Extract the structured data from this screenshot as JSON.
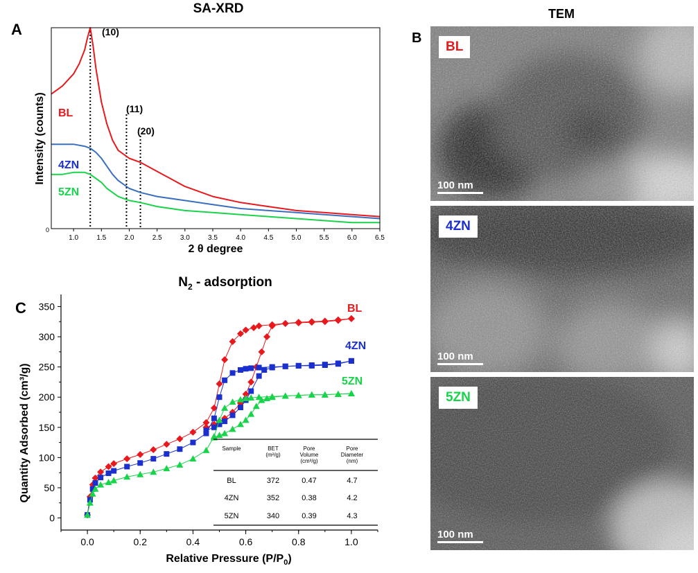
{
  "panel_a": {
    "letter": "A",
    "title": "SA-XRD",
    "xlabel": "2 θ degree",
    "ylabel": "Intensity (counts)",
    "y_tick": "0",
    "x_ticks": [
      "1.0",
      "1.5",
      "2.0",
      "2.5",
      "3.0",
      "3.5",
      "4.0",
      "4.5",
      "5.0",
      "5.5",
      "6.0",
      "6.5"
    ],
    "peaks": [
      "(10)",
      "(11)",
      "(20)"
    ],
    "series_labels": [
      "BL",
      "4ZN",
      "5ZN"
    ]
  },
  "panel_b": {
    "letter": "B",
    "title": "TEM",
    "images": [
      {
        "label": "BL",
        "scale": "100 nm",
        "color": "#e8191d"
      },
      {
        "label": "4ZN",
        "scale": "100 nm",
        "color": "#1b2fcc"
      },
      {
        "label": "5ZN",
        "scale": "100 nm",
        "color": "#19d34a"
      }
    ]
  },
  "panel_c": {
    "letter": "C",
    "title_main": "N",
    "title_sub": "2",
    "title_rest": " - adsorption",
    "xlabel_main": "Relative Pressure (P/P",
    "xlabel_sub": "0",
    "xlabel_end": ")",
    "ylabel": "Quantity Adsorbed (cm³/g)",
    "table": {
      "headers": [
        "Sample",
        "BET (m²/g)",
        "Pore Volume (cm³/g)",
        "Pore Diameter (nm)"
      ],
      "rows": [
        [
          "BL",
          "372",
          "0.47",
          "4.7"
        ],
        [
          "4ZN",
          "352",
          "0.38",
          "4.2"
        ],
        [
          "5ZN",
          "340",
          "0.39",
          "4.3"
        ]
      ]
    }
  },
  "chart_data": [
    {
      "type": "line",
      "title": "SA-XRD",
      "xlabel": "2 θ degree",
      "ylabel": "Intensity (counts)",
      "xlim": [
        0.6,
        6.5
      ],
      "ylim": [
        0,
        100
      ],
      "annotations": [
        {
          "text": "(10)",
          "x": 1.3
        },
        {
          "text": "(11)",
          "x": 1.95
        },
        {
          "text": "(20)",
          "x": 2.2
        }
      ],
      "series": [
        {
          "name": "BL",
          "color": "#e8191d",
          "x": [
            0.6,
            0.8,
            1.0,
            1.1,
            1.2,
            1.25,
            1.3,
            1.35,
            1.4,
            1.5,
            1.6,
            1.7,
            1.8,
            2.0,
            2.2,
            2.4,
            2.6,
            2.8,
            3.0,
            3.5,
            4.0,
            4.5,
            5.0,
            5.5,
            6.0,
            6.5
          ],
          "y": [
            67,
            71,
            77,
            82,
            89,
            95,
            100,
            91,
            80,
            63,
            52,
            44,
            39,
            35,
            33,
            30,
            27,
            24,
            21,
            16,
            13,
            11,
            9,
            8,
            7,
            6
          ]
        },
        {
          "name": "4ZN",
          "color": "#3a6fbf",
          "x": [
            0.6,
            0.8,
            1.0,
            1.2,
            1.3,
            1.4,
            1.5,
            1.6,
            1.7,
            1.8,
            2.0,
            2.2,
            2.5,
            3.0,
            3.5,
            4.0,
            4.5,
            5.0,
            5.5,
            6.0,
            6.5
          ],
          "y": [
            42,
            42,
            42,
            41,
            40,
            38,
            35,
            31,
            27,
            24,
            20,
            18,
            16,
            14,
            12,
            10,
            9,
            8,
            7,
            6,
            5
          ]
        },
        {
          "name": "5ZN",
          "color": "#19d34a",
          "x": [
            0.6,
            0.8,
            1.0,
            1.2,
            1.3,
            1.4,
            1.5,
            1.6,
            1.7,
            1.8,
            2.0,
            2.2,
            2.5,
            3.0,
            3.5,
            4.0,
            4.5,
            5.0,
            5.5,
            6.0,
            6.5
          ],
          "y": [
            27,
            27,
            28,
            28,
            27,
            25,
            23,
            20,
            18,
            16,
            14,
            13,
            11,
            9,
            8,
            7,
            6,
            5,
            4,
            3,
            3
          ]
        }
      ]
    },
    {
      "type": "line",
      "title": "N2 - adsorption",
      "xlabel": "Relative Pressure (P/P0)",
      "ylabel": "Quantity Adsorbed (cm³/g)",
      "xlim": [
        -0.1,
        1.1
      ],
      "ylim": [
        -20,
        370
      ],
      "x_ticks": [
        0.0,
        0.2,
        0.4,
        0.6,
        0.8,
        1.0
      ],
      "y_ticks": [
        0,
        50,
        100,
        150,
        200,
        250,
        300,
        350
      ],
      "series": [
        {
          "name": "BL",
          "color": "#e8191d",
          "marker": "diamond",
          "adsorption": {
            "x": [
              0.0,
              0.01,
              0.02,
              0.03,
              0.05,
              0.08,
              0.1,
              0.15,
              0.2,
              0.25,
              0.3,
              0.35,
              0.4,
              0.45,
              0.48,
              0.5,
              0.52,
              0.55,
              0.58,
              0.6,
              0.63,
              0.65,
              0.7,
              0.75,
              0.8,
              0.85,
              0.9,
              0.95,
              1.0
            ],
            "y": [
              5,
              35,
              55,
              66,
              76,
              85,
              90,
              98,
              105,
              113,
              122,
              131,
              142,
              158,
              182,
              222,
              262,
              292,
              305,
              311,
              315,
              318,
              320,
              322,
              323,
              324,
              325,
              327,
              330
            ]
          },
          "desorption": {
            "x": [
              1.0,
              0.95,
              0.9,
              0.85,
              0.8,
              0.75,
              0.7,
              0.68,
              0.66,
              0.64,
              0.62,
              0.6,
              0.58,
              0.55,
              0.52,
              0.5,
              0.48,
              0.45
            ],
            "y": [
              330,
              328,
              326,
              325,
              324,
              322,
              318,
              300,
              275,
              250,
              225,
              205,
              190,
              175,
              165,
              160,
              155,
              150
            ]
          }
        },
        {
          "name": "4ZN",
          "color": "#1b2fcc",
          "marker": "square",
          "adsorption": {
            "x": [
              0.0,
              0.01,
              0.02,
              0.03,
              0.05,
              0.08,
              0.1,
              0.15,
              0.2,
              0.25,
              0.3,
              0.35,
              0.4,
              0.45,
              0.48,
              0.5,
              0.52,
              0.55,
              0.58,
              0.6,
              0.62,
              0.65,
              0.7,
              0.75,
              0.8,
              0.85,
              0.9,
              0.95,
              1.0
            ],
            "y": [
              5,
              30,
              48,
              58,
              67,
              74,
              78,
              85,
              91,
              98,
              106,
              114,
              125,
              140,
              165,
              200,
              228,
              240,
              245,
              247,
              248,
              249,
              250,
              251,
              252,
              252,
              253,
              255,
              260
            ]
          },
          "desorption": {
            "x": [
              1.0,
              0.95,
              0.9,
              0.85,
              0.8,
              0.75,
              0.7,
              0.67,
              0.65,
              0.62,
              0.6,
              0.58,
              0.55,
              0.52,
              0.5,
              0.48,
              0.45
            ],
            "y": [
              260,
              256,
              254,
              253,
              252,
              251,
              249,
              245,
              235,
              210,
              195,
              183,
              170,
              160,
              155,
              150,
              145
            ]
          }
        },
        {
          "name": "5ZN",
          "color": "#19d34a",
          "marker": "triangle",
          "adsorption": {
            "x": [
              0.0,
              0.01,
              0.02,
              0.03,
              0.05,
              0.08,
              0.1,
              0.15,
              0.2,
              0.25,
              0.3,
              0.35,
              0.4,
              0.45,
              0.48,
              0.5,
              0.52,
              0.55,
              0.58,
              0.6,
              0.62,
              0.65,
              0.7,
              0.75,
              0.8,
              0.85,
              0.9,
              0.95,
              1.0
            ],
            "y": [
              5,
              25,
              40,
              48,
              55,
              59,
              62,
              68,
              72,
              76,
              82,
              88,
              98,
              112,
              135,
              162,
              182,
              192,
              196,
              198,
              199,
              200,
              201,
              202,
              203,
              204,
              204,
              205,
              206
            ]
          },
          "desorption": {
            "x": [
              1.0,
              0.95,
              0.9,
              0.85,
              0.8,
              0.75,
              0.7,
              0.68,
              0.66,
              0.64,
              0.62,
              0.6,
              0.58,
              0.55,
              0.52,
              0.5,
              0.48
            ],
            "y": [
              206,
              205,
              204,
              204,
              203,
              202,
              200,
              198,
              195,
              185,
              172,
              162,
              155,
              147,
              140,
              137,
              133
            ]
          }
        }
      ]
    }
  ]
}
